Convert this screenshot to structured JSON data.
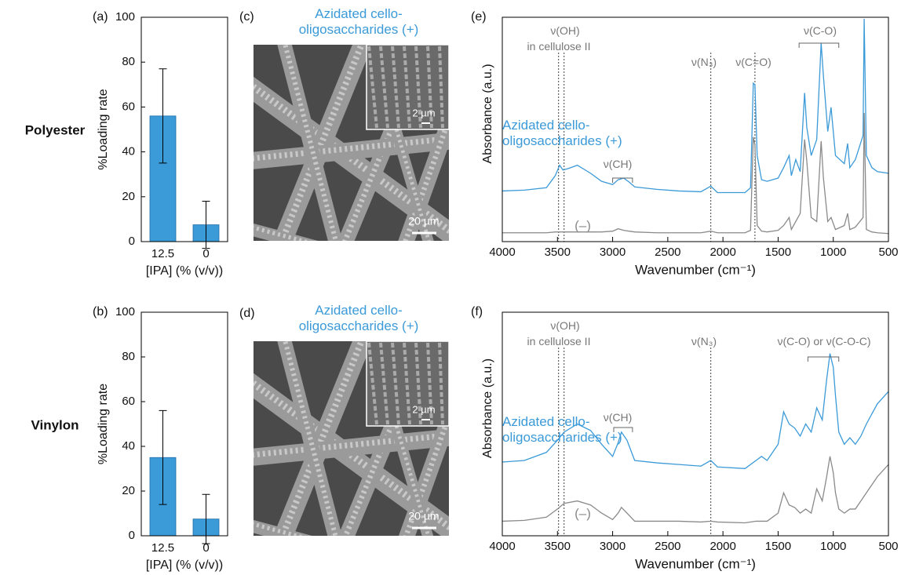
{
  "row_labels": [
    "Polyester",
    "Vinylon"
  ],
  "images": [
    {
      "label": "(c)",
      "caption": "Azidated cello-oligosaccharides (+)",
      "scale_bar": "20 µm",
      "inset_scale_bar": "2 µm"
    },
    {
      "label": "(d)",
      "caption": "Azidated cello-oligosaccharides (+)",
      "scale_bar": "20 µm",
      "inset_scale_bar": "2 µm"
    }
  ],
  "chart_data": [
    {
      "type": "bar",
      "panel": "(a)",
      "categories": [
        "12.5",
        "0"
      ],
      "values": [
        56,
        7.5
      ],
      "errors": [
        21,
        10.5
      ],
      "color": "#3b9ad8",
      "ylabel": "%Loading rate",
      "xlabel": "[IPA] (% (v/v))",
      "ylim": [
        0,
        100
      ],
      "yticks": [
        0,
        20,
        40,
        60,
        80,
        100
      ]
    },
    {
      "type": "bar",
      "panel": "(b)",
      "categories": [
        "12.5",
        "0"
      ],
      "values": [
        35,
        7.5
      ],
      "errors": [
        21,
        11
      ],
      "color": "#3b9ad8",
      "ylabel": "%Loading rate",
      "xlabel": "[IPA] (% (v/v))",
      "ylim": [
        0,
        100
      ],
      "yticks": [
        0,
        20,
        40,
        60,
        80,
        100
      ]
    },
    {
      "type": "line",
      "panel": "(e)",
      "xlabel": "Wavenumber (cm⁻¹)",
      "ylabel": "Absorbance (a.u.)",
      "xlim": [
        4000,
        500
      ],
      "xticks": [
        4000,
        3500,
        3000,
        2500,
        2000,
        1500,
        1000,
        500
      ],
      "ylim": [
        0,
        279
      ],
      "marker_lines": [
        3490,
        3440,
        2110,
        1710
      ],
      "annotations": [
        "ν(OH)",
        "in cellulose II",
        "ν(N₃)",
        "ν(C=O)",
        "ν(C-O)",
        "ν(CH)"
      ],
      "x": [
        4000,
        3800,
        3600,
        3520,
        3480,
        3450,
        3400,
        3320,
        3200,
        3100,
        3000,
        2950,
        2900,
        2850,
        2800,
        2600,
        2400,
        2200,
        2110,
        2050,
        1800,
        1750,
        1725,
        1710,
        1690,
        1650,
        1600,
        1500,
        1450,
        1400,
        1380,
        1340,
        1300,
        1260,
        1240,
        1200,
        1150,
        1110,
        1090,
        1050,
        1020,
        980,
        900,
        870,
        850,
        800,
        730,
        720,
        700,
        650,
        600,
        500
      ],
      "series": [
        {
          "name": "Azidated cello-oligosaccharides (+)",
          "color": "#3b9ad8",
          "values": [
            63,
            64,
            67,
            82,
            95,
            89,
            91,
            95,
            85,
            75,
            71,
            77,
            79,
            74,
            68,
            65,
            63,
            62,
            69,
            61,
            61,
            67,
            197,
            195,
            107,
            77,
            75,
            79,
            92,
            107,
            82,
            102,
            87,
            185,
            142,
            107,
            127,
            247,
            207,
            137,
            167,
            107,
            97,
            122,
            92,
            102,
            132,
            277,
            107,
            92,
            87,
            85
          ]
        },
        {
          "name": "(–)",
          "color": "#8a8a8a",
          "values": [
            11,
            11,
            11,
            12,
            12,
            12,
            12,
            12,
            12,
            12,
            13,
            16,
            14,
            13,
            12,
            11,
            11,
            11,
            13,
            11,
            11,
            14,
            130,
            120,
            20,
            13,
            12,
            14,
            20,
            30,
            15,
            25,
            35,
            127,
            100,
            30,
            25,
            125,
            80,
            25,
            30,
            15,
            20,
            35,
            15,
            18,
            30,
            160,
            15,
            12,
            11,
            10
          ]
        }
      ]
    },
    {
      "type": "line",
      "panel": "(f)",
      "xlabel": "Wavenumber (cm⁻¹)",
      "ylabel": "Absorbance (a.u.)",
      "xlim": [
        4000,
        500
      ],
      "xticks": [
        4000,
        3500,
        3000,
        2500,
        2000,
        1500,
        1000,
        500
      ],
      "ylim": [
        0,
        276
      ],
      "marker_lines": [
        3490,
        3440,
        2110
      ],
      "annotations": [
        "ν(OH)",
        "in cellulose II",
        "ν(N₃)",
        "ν(C-O) or ν(C-O-C)",
        "ν(CH)"
      ],
      "x": [
        4000,
        3800,
        3600,
        3500,
        3440,
        3320,
        3200,
        3100,
        3000,
        2950,
        2920,
        2870,
        2800,
        2600,
        2400,
        2200,
        2110,
        2050,
        1800,
        1700,
        1650,
        1600,
        1500,
        1450,
        1400,
        1350,
        1300,
        1250,
        1200,
        1150,
        1100,
        1060,
        1030,
        1000,
        980,
        950,
        900,
        850,
        800,
        750,
        700,
        600,
        500
      ],
      "series": [
        {
          "name": "Azidated cello-oligosaccharides (+)",
          "color": "#3b9ad8",
          "values": [
            91,
            93,
            103,
            118,
            128,
            138,
            130,
            113,
            98,
            115,
            128,
            118,
            93,
            90,
            88,
            86,
            93,
            85,
            83,
            93,
            98,
            93,
            113,
            153,
            138,
            133,
            123,
            138,
            128,
            158,
            143,
            193,
            225,
            208,
            173,
            128,
            113,
            121,
            113,
            123,
            138,
            163,
            178
          ]
        },
        {
          "name": "(–)",
          "color": "#8a8a8a",
          "values": [
            18,
            19,
            23,
            33,
            40,
            43,
            38,
            28,
            20,
            28,
            35,
            28,
            18,
            18,
            18,
            17,
            18,
            17,
            16,
            18,
            18,
            18,
            28,
            53,
            38,
            35,
            28,
            33,
            28,
            58,
            43,
            73,
            98,
            78,
            53,
            33,
            28,
            33,
            33,
            43,
            53,
            73,
            88
          ]
        }
      ]
    }
  ]
}
